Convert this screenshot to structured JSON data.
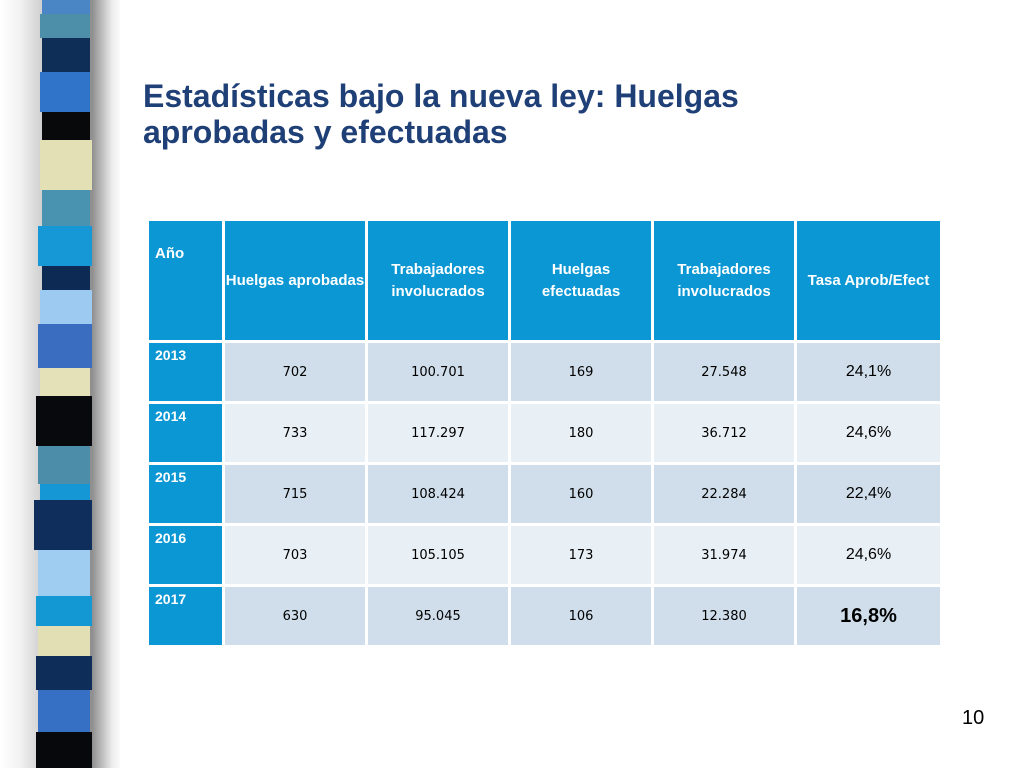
{
  "slide": {
    "title": "Estadísticas bajo la nueva ley: Huelgas aprobadas y efectuadas",
    "page_number": "10"
  },
  "table": {
    "headers": [
      "Año",
      "Huelgas aprobadas",
      "Trabajadores involucrados",
      "Huelgas efectuadas",
      "Trabajadores involucrados",
      "Tasa Aprob/Efect"
    ],
    "rows": [
      {
        "year": "2013",
        "approved": "702",
        "workers_approved": "100.701",
        "executed": "169",
        "workers_executed": "27.548",
        "rate": "24,1%"
      },
      {
        "year": "2014",
        "approved": "733",
        "workers_approved": "117.297",
        "executed": "180",
        "workers_executed": "36.712",
        "rate": "24,6%"
      },
      {
        "year": "2015",
        "approved": "715",
        "workers_approved": "108.424",
        "executed": "160",
        "workers_executed": "22.284",
        "rate": "22,4%"
      },
      {
        "year": "2016",
        "approved": "703",
        "workers_approved": "105.105",
        "executed": "173",
        "workers_executed": "31.974",
        "rate": "24,6%"
      },
      {
        "year": "2017",
        "approved": "630",
        "workers_approved": "95.045",
        "executed": "106",
        "workers_executed": "12.380",
        "rate": "16,8%"
      }
    ]
  },
  "colors": {
    "title": "#1f3f77",
    "header_fill": "#0b97d3",
    "row_fill_dark": "#cfdeea",
    "row_fill_light": "#e8eff5"
  }
}
